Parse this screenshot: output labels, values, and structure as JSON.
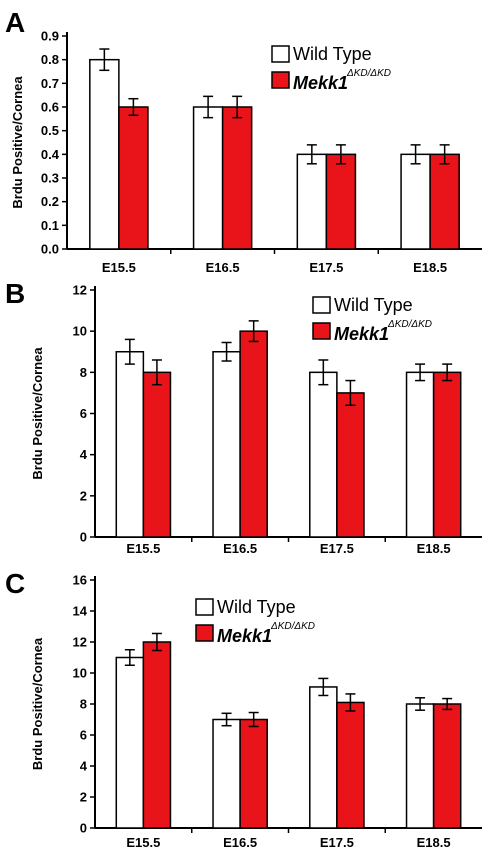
{
  "chart_data": [
    {
      "type": "bar",
      "panel_label": "A",
      "ylabel": "Brdu Positive/Cornea",
      "ylim": [
        0,
        0.9
      ],
      "yticks": [
        "0.0",
        "0.1",
        "0.2",
        "0.3",
        "0.4",
        "0.5",
        "0.6",
        "0.7",
        "0.8",
        "0.9"
      ],
      "categories": [
        "E15.5",
        "E16.5",
        "E17.5",
        "E18.5"
      ],
      "series": [
        {
          "name": "Wild Type",
          "values": [
            0.8,
            0.6,
            0.4,
            0.4
          ],
          "errors": [
            0.045,
            0.045,
            0.04,
            0.04
          ]
        },
        {
          "name": "Mekk1",
          "name_superscript": "ΔKD/ΔKD",
          "values": [
            0.6,
            0.6,
            0.4,
            0.4
          ],
          "errors": [
            0.035,
            0.045,
            0.04,
            0.04
          ]
        }
      ],
      "legend": "top-right",
      "grid": false
    },
    {
      "type": "bar",
      "panel_label": "B",
      "ylabel": "Brdu Positive/Cornea",
      "ylim": [
        0,
        12
      ],
      "yticks": [
        "0",
        "2",
        "4",
        "6",
        "8",
        "10",
        "12"
      ],
      "categories": [
        "E15.5",
        "E16.5",
        "E17.5",
        "E18.5"
      ],
      "series": [
        {
          "name": "Wild Type",
          "values": [
            9.0,
            9.0,
            8.0,
            8.0
          ],
          "errors": [
            0.6,
            0.45,
            0.6,
            0.4
          ]
        },
        {
          "name": "Mekk1",
          "name_superscript": "ΔKD/ΔKD",
          "values": [
            8.0,
            10.0,
            7.0,
            8.0
          ],
          "errors": [
            0.6,
            0.5,
            0.6,
            0.4
          ]
        }
      ],
      "legend": "top-right",
      "grid": false
    },
    {
      "type": "bar",
      "panel_label": "C",
      "ylabel": "Brdu Positive/Cornea",
      "ylim": [
        0,
        16
      ],
      "yticks": [
        "0",
        "2",
        "4",
        "6",
        "8",
        "10",
        "12",
        "14",
        "16"
      ],
      "categories": [
        "E15.5",
        "E16.5",
        "E17.5",
        "E18.5"
      ],
      "series": [
        {
          "name": "Wild Type",
          "values": [
            11.0,
            7.0,
            9.1,
            8.0
          ],
          "errors": [
            0.5,
            0.4,
            0.55,
            0.4
          ]
        },
        {
          "name": "Mekk1",
          "name_superscript": "ΔKD/ΔKD",
          "values": [
            12.0,
            7.0,
            8.1,
            8.0
          ],
          "errors": [
            0.55,
            0.45,
            0.55,
            0.35
          ]
        }
      ],
      "legend": "top-center",
      "grid": false
    }
  ],
  "colors": {
    "wild_type": "#ffffff",
    "mutant": "#e8141a",
    "outline": "#000000"
  }
}
